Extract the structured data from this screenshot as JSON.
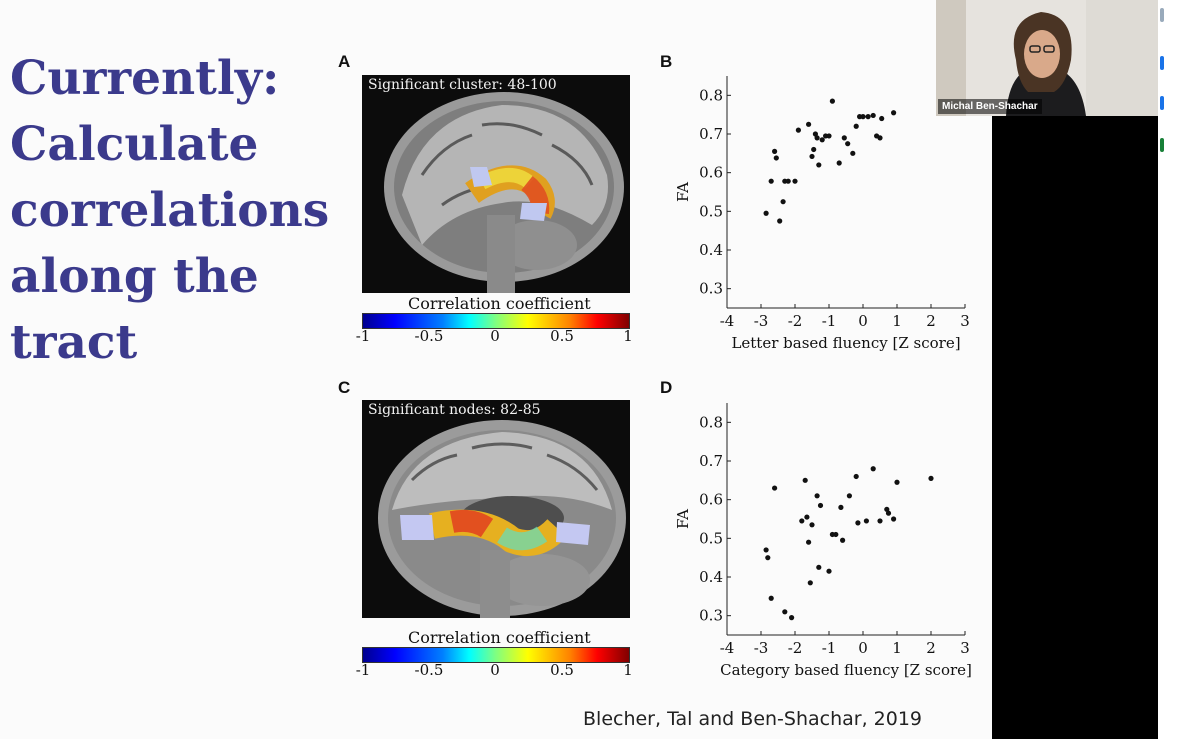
{
  "slide": {
    "title_lines": [
      "Currently:",
      "Calculate",
      "correlations",
      "along the",
      "tract"
    ],
    "citation": "Blecher, Tal and Ben-Shachar, 2019",
    "title_color": "#3b3a8c"
  },
  "panels": {
    "A": {
      "letter": "A",
      "caption": "Significant cluster: 48-100",
      "colorbar_title": "Correlation coefficient",
      "colorbar_ticks": [
        "-1",
        "-0.5",
        "0",
        "0.5",
        "1"
      ]
    },
    "B": {
      "letter": "B"
    },
    "C": {
      "letter": "C",
      "caption": "Significant nodes: 82-85",
      "colorbar_title": "Correlation coefficient",
      "colorbar_ticks": [
        "-1",
        "-0.5",
        "0",
        "0.5",
        "1"
      ]
    },
    "D": {
      "letter": "D"
    }
  },
  "video": {
    "name": "Michal Ben-Shachar"
  },
  "chart_data": [
    {
      "type": "scatter",
      "panel": "B",
      "title": "",
      "xlabel": "Letter based fluency [Z score]",
      "ylabel": "FA",
      "xlim": [
        -4,
        3
      ],
      "ylim": [
        0.25,
        0.85
      ],
      "xticks": [
        "-4",
        "-3",
        "-2",
        "-1",
        "0",
        "1",
        "2",
        "3"
      ],
      "yticks": [
        "0.3",
        "0.4",
        "0.5",
        "0.6",
        "0.7",
        "0.8"
      ],
      "x": [
        -2.85,
        -2.7,
        -2.6,
        -2.55,
        -2.45,
        -2.35,
        -2.3,
        -2.0,
        -2.2,
        -1.9,
        -1.6,
        -1.5,
        -1.45,
        -1.4,
        -1.35,
        -1.3,
        -1.2,
        -1.1,
        -1.0,
        -0.9,
        -0.7,
        -0.55,
        -0.45,
        -0.3,
        -0.2,
        -0.1,
        0.0,
        0.15,
        0.3,
        0.4,
        0.5,
        0.55,
        0.9
      ],
      "y": [
        0.495,
        0.578,
        0.655,
        0.638,
        0.475,
        0.525,
        0.578,
        0.578,
        0.578,
        0.71,
        0.725,
        0.642,
        0.66,
        0.7,
        0.69,
        0.62,
        0.685,
        0.695,
        0.695,
        0.785,
        0.625,
        0.69,
        0.675,
        0.65,
        0.72,
        0.745,
        0.745,
        0.745,
        0.748,
        0.695,
        0.69,
        0.74,
        0.755
      ]
    },
    {
      "type": "scatter",
      "panel": "D",
      "title": "",
      "xlabel": "Category based fluency [Z score]",
      "ylabel": "FA",
      "xlim": [
        -4,
        3
      ],
      "ylim": [
        0.25,
        0.85
      ],
      "xticks": [
        "-4",
        "-3",
        "-2",
        "-1",
        "0",
        "1",
        "2",
        "3"
      ],
      "yticks": [
        "0.3",
        "0.4",
        "0.5",
        "0.6",
        "0.7",
        "0.8"
      ],
      "x": [
        -2.85,
        -2.8,
        -2.7,
        -2.6,
        -2.3,
        -2.1,
        -1.8,
        -1.7,
        -1.65,
        -1.6,
        -1.55,
        -1.5,
        -1.35,
        -1.3,
        -1.25,
        -1.0,
        -0.9,
        -0.8,
        -0.65,
        -0.6,
        -0.4,
        -0.2,
        -0.15,
        0.1,
        0.3,
        0.5,
        0.7,
        0.75,
        0.9,
        1.0,
        2.0
      ],
      "y": [
        0.47,
        0.45,
        0.345,
        0.63,
        0.31,
        0.295,
        0.545,
        0.65,
        0.555,
        0.49,
        0.385,
        0.535,
        0.61,
        0.425,
        0.585,
        0.415,
        0.51,
        0.51,
        0.58,
        0.495,
        0.61,
        0.66,
        0.54,
        0.545,
        0.68,
        0.545,
        0.575,
        0.565,
        0.55,
        0.645,
        0.655
      ]
    }
  ]
}
